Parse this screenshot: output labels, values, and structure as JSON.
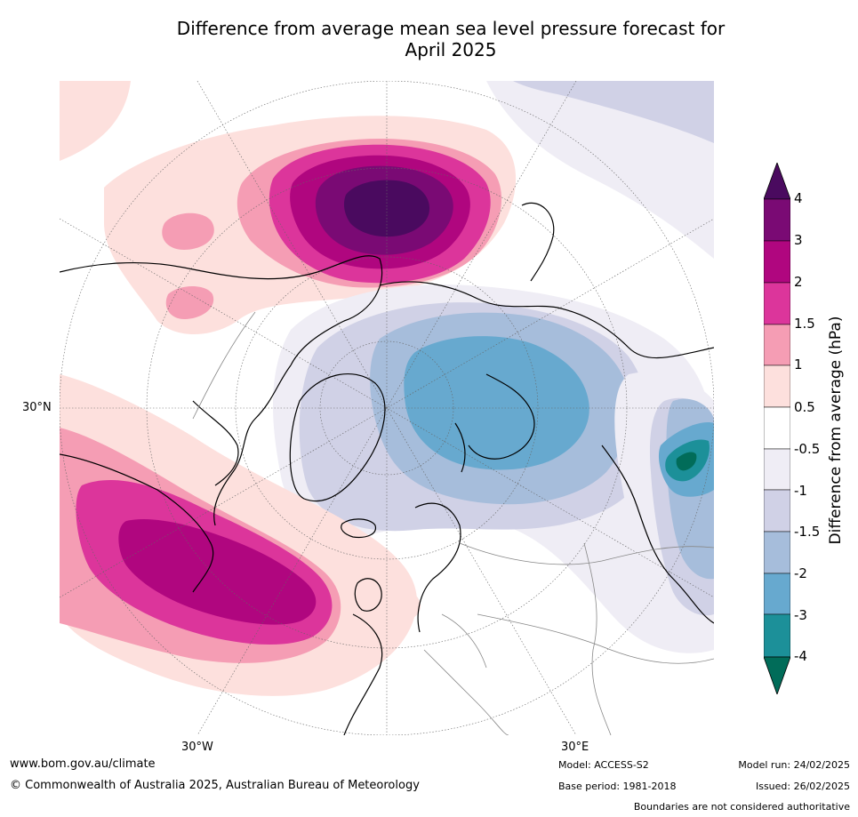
{
  "title_line1": "Difference from average mean sea level pressure forecast for",
  "title_line2": "April 2025",
  "map_labels": {
    "lat_30n": "30°N",
    "lon_30w": "30°W",
    "lon_30e": "30°E"
  },
  "colorbar": {
    "title": "Difference from average (hPa)",
    "ticks": [
      "4",
      "3",
      "2",
      "1.5",
      "1",
      "0.5",
      "-0.5",
      "-1",
      "-1.5",
      "-2",
      "-3",
      "-4"
    ],
    "colors": {
      "above_4": "#4a0a5f",
      "3_to_4": "#7a0a74",
      "2_to_3": "#b0067f",
      "1.5_to_2": "#dc359b",
      "1_to_1.5": "#f59db4",
      "0.5_to_1": "#fde0dd",
      "neutral": "#ffffff",
      "-1_to_-0.5": "#efedf5",
      "-1.5_to_-1": "#d0d1e6",
      "-2_to_-1.5": "#a6bddb",
      "-3_to_-2": "#67a9cf",
      "-4_to_-3": "#1c9099",
      "below_-4": "#016c59"
    }
  },
  "footer": {
    "website": "www.bom.gov.au/climate",
    "copyright": "© Commonwealth of Australia 2025, Australian Bureau of Meteorology",
    "model": "Model: ACCESS-S2",
    "base_period": "Base period: 1981-2018",
    "model_run": "Model run: 24/02/2025",
    "issued": "Issued: 26/02/2025",
    "disclaimer": "Boundaries are not considered authoritative"
  }
}
